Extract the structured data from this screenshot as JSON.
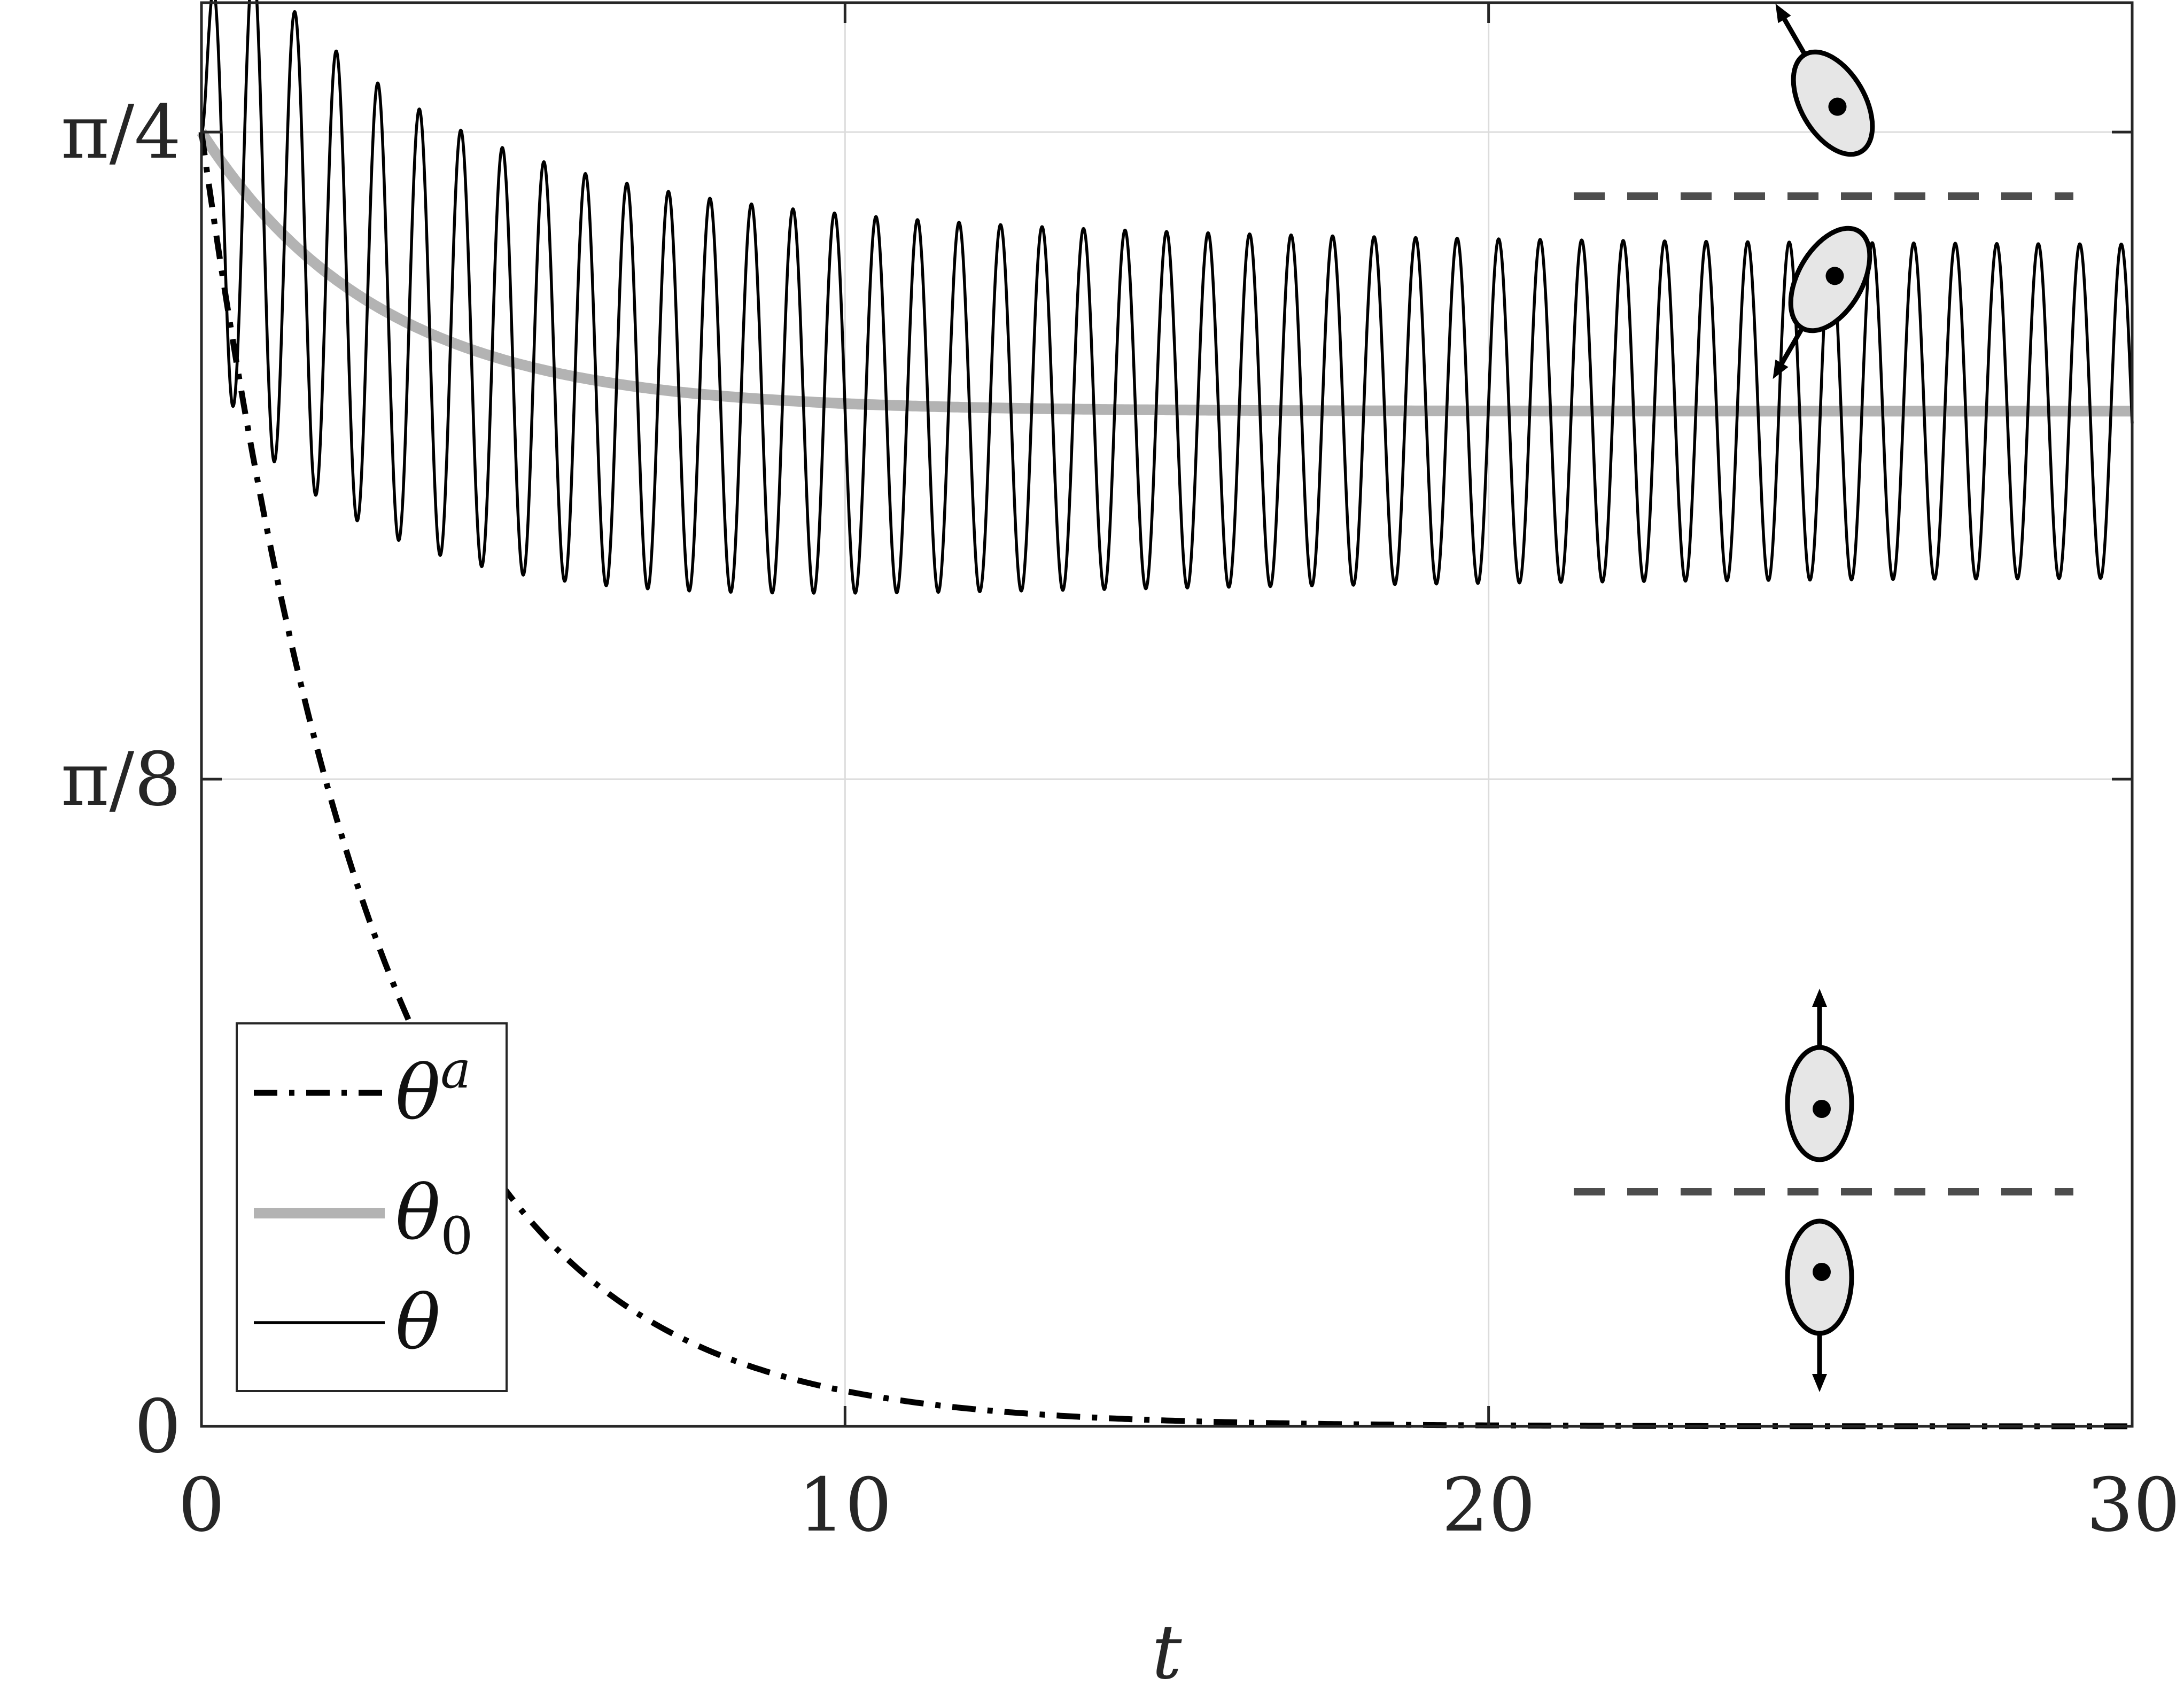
{
  "chart_data": {
    "type": "line",
    "title": "",
    "xlabel": "t",
    "ylabel": "",
    "xlim": [
      0,
      30
    ],
    "ylim": [
      0,
      0.8639
    ],
    "grid": true,
    "legend_position": "bottom-left",
    "x_ticks": [
      {
        "value": 0,
        "label": "0"
      },
      {
        "value": 10,
        "label": "10"
      },
      {
        "value": 20,
        "label": "20"
      },
      {
        "value": 30,
        "label": "30"
      }
    ],
    "y_ticks": [
      {
        "value": 0,
        "label": "0"
      },
      {
        "value": 0.3927,
        "label": "π/8"
      },
      {
        "value": 0.7854,
        "label": "π/4"
      }
    ],
    "series": [
      {
        "name": "θ^a",
        "legend_base": "θ",
        "legend_sup": "a",
        "style": "dash-dot",
        "color": "#000000",
        "model": {
          "kind": "exponential_decay",
          "y0": 0.7854,
          "rate": 0.36
        },
        "x": [
          0,
          2,
          4,
          6,
          8,
          10,
          12,
          14,
          16,
          18,
          20,
          25,
          30
        ],
        "y": [
          0.7854,
          0.3812,
          0.185,
          0.0902,
          0.044,
          0.0215,
          0.0104,
          0.0051,
          0.0025,
          0.0012,
          0.0006,
          0.0001,
          0.0
        ]
      },
      {
        "name": "θ_0",
        "legend_base": "θ",
        "legend_sub": "0",
        "style": "solid-thick",
        "color": "#b3b3b3",
        "model": {
          "kind": "relaxation",
          "y0": 0.7854,
          "y_inf": 0.616,
          "rate": 0.36
        },
        "x": [
          0,
          2,
          4,
          6,
          8,
          10,
          12,
          15,
          20,
          25,
          30
        ],
        "y": [
          0.7854,
          0.698,
          0.656,
          0.635,
          0.6245,
          0.6197,
          0.6178,
          0.6165,
          0.6161,
          0.616,
          0.616
        ]
      },
      {
        "name": "θ",
        "legend_base": "θ",
        "style": "solid-thin",
        "color": "#000000",
        "model": {
          "kind": "damped_oscillation_about_theta0",
          "amp0": 0.0,
          "amp_inf": 0.1,
          "amp_rise": 0.12,
          "period": 0.645
        },
        "x": [
          0,
          0.31,
          0.62,
          2.9,
          5.5,
          10.0,
          20.0,
          30.0
        ],
        "y": [
          0.7854,
          0.9363,
          0.7446,
          0.8532,
          0.7865,
          0.7295,
          0.7145,
          0.7145
        ]
      }
    ],
    "annotations": [
      {
        "kind": "body-pair",
        "orientation": "tilted",
        "t_center": 25.1
      },
      {
        "kind": "body-pair",
        "orientation": "vertical",
        "t_center": 25.1
      }
    ]
  }
}
